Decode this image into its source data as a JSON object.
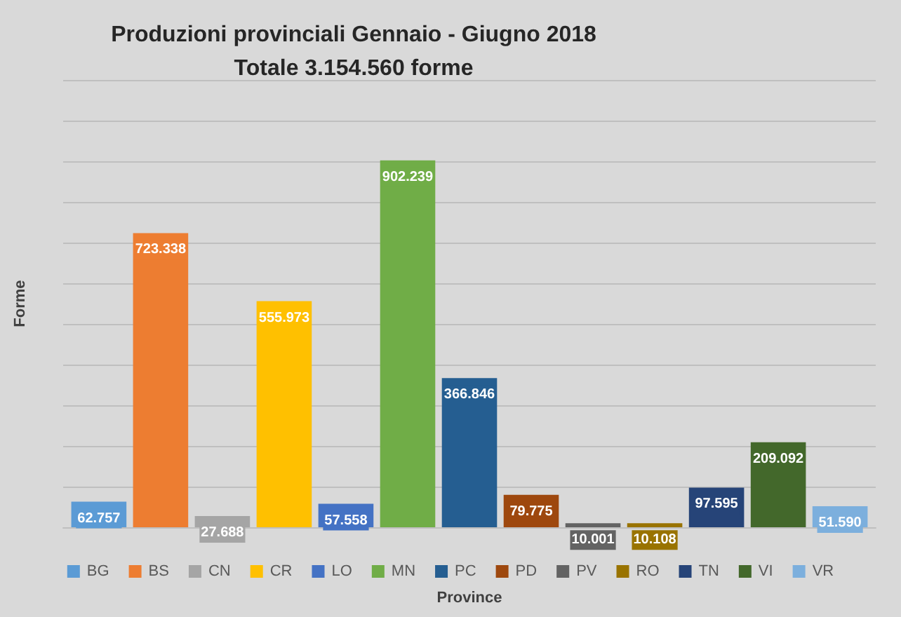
{
  "chart_data": {
    "type": "bar",
    "title": "Produzioni provinciali Gennaio - Giugno 2018",
    "subtitle": "Totale 3.154.560 forme",
    "xlabel": "Province",
    "ylabel": "Forme",
    "categories": [
      null
    ],
    "series": [
      {
        "name": "BG",
        "color": "#5b9bd5",
        "values": [
          62757
        ],
        "value_labels": [
          "62.757"
        ]
      },
      {
        "name": "BS",
        "color": "#ed7d31",
        "values": [
          723338
        ],
        "value_labels": [
          "723.338"
        ]
      },
      {
        "name": "CN",
        "color": "#a5a5a5",
        "values": [
          27688
        ],
        "value_labels": [
          "27.688"
        ]
      },
      {
        "name": "CR",
        "color": "#ffc000",
        "values": [
          555973
        ],
        "value_labels": [
          "555.973"
        ]
      },
      {
        "name": "LO",
        "color": "#4472c4",
        "values": [
          57558
        ],
        "value_labels": [
          "57.558"
        ]
      },
      {
        "name": "MN",
        "color": "#70ad47",
        "values": [
          902239
        ],
        "value_labels": [
          "902.239"
        ]
      },
      {
        "name": "PC",
        "color": "#255e91",
        "values": [
          366846
        ],
        "value_labels": [
          "366.846"
        ]
      },
      {
        "name": "PD",
        "color": "#9e480e",
        "values": [
          79775
        ],
        "value_labels": [
          "79.775"
        ]
      },
      {
        "name": "PV",
        "color": "#636363",
        "values": [
          10001
        ],
        "value_labels": [
          "10.001"
        ]
      },
      {
        "name": "RO",
        "color": "#997300",
        "values": [
          10108
        ],
        "value_labels": [
          "10.108"
        ]
      },
      {
        "name": "TN",
        "color": "#264478",
        "values": [
          97595
        ],
        "value_labels": [
          "97.595"
        ]
      },
      {
        "name": "VI",
        "color": "#43682b",
        "values": [
          209092
        ],
        "value_labels": [
          "209.092"
        ]
      },
      {
        "name": "VR",
        "color": "#7cafdd",
        "values": [
          51590
        ],
        "value_labels": [
          "51.590"
        ]
      }
    ],
    "ylim": [
      0,
      1100000
    ],
    "yticks": [
      {
        "value": 0,
        "label": null
      },
      {
        "value": 100000,
        "label": null
      },
      {
        "value": 200000,
        "label": null
      },
      {
        "value": 300000,
        "label": null
      },
      {
        "value": 400000,
        "label": null
      },
      {
        "value": 500000,
        "label": null
      },
      {
        "value": 600000,
        "label": null
      },
      {
        "value": 700000,
        "label": null
      },
      {
        "value": 800000,
        "label": null
      },
      {
        "value": 900000,
        "label": null
      },
      {
        "value": 1000000,
        "label": null
      },
      {
        "value": 1100000,
        "label": null
      }
    ],
    "grid": "y",
    "legend": "bottom"
  }
}
